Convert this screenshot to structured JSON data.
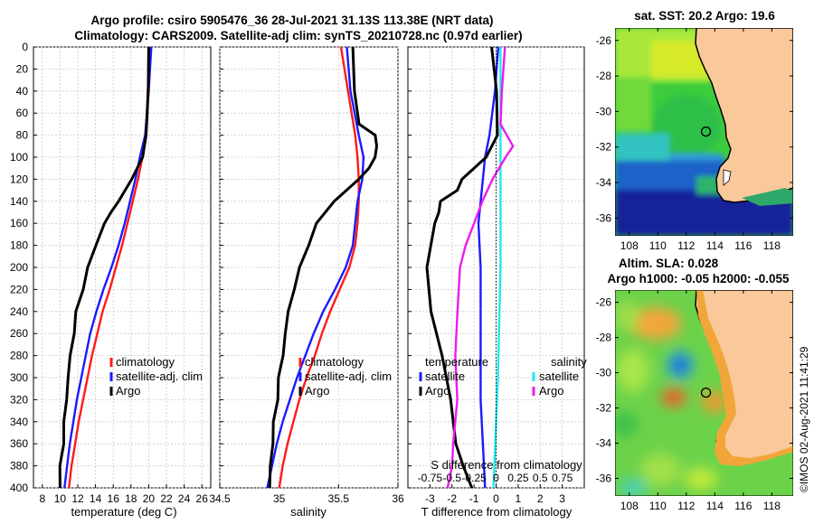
{
  "title_line1": "Argo profile: csiro 5905476_36 28-Jul-2021 31.13S 113.38E (NRT data)",
  "title_line2": "Climatology: CARS2009. Satellite-adj clim: synTS_20210728.nc (0.97d earlier)",
  "colors": {
    "red": "#ff1a1a",
    "blue": "#1a1aff",
    "black": "#000000",
    "cyan": "#1ee8ee",
    "magenta": "#ee1aee",
    "land": "#f9c99b"
  },
  "depth_ticks": [
    "0",
    "20",
    "40",
    "60",
    "80",
    "100",
    "120",
    "140",
    "160",
    "180",
    "200",
    "220",
    "240",
    "260",
    "280",
    "300",
    "320",
    "340",
    "360",
    "380",
    "400"
  ],
  "chart_data": [
    {
      "type": "line",
      "name": "temperature",
      "xlabel": "temperature (deg C)",
      "xlim": [
        7,
        27
      ],
      "ylim": [
        0,
        400
      ],
      "y_reversed": true,
      "xticks": [
        "8",
        "10",
        "12",
        "14",
        "16",
        "18",
        "20",
        "22",
        "24",
        "26"
      ],
      "xtick_values": [
        8,
        10,
        12,
        14,
        16,
        18,
        20,
        22,
        24,
        26
      ],
      "legend": [
        "climatology",
        "satellite-adj. clim",
        "Argo"
      ],
      "series": [
        {
          "name": "climatology",
          "color": "red",
          "depth": [
            0,
            40,
            80,
            100,
            120,
            140,
            160,
            180,
            200,
            220,
            240,
            260,
            280,
            300,
            320,
            340,
            360,
            380,
            400
          ],
          "values": [
            20.2,
            19.9,
            19.7,
            19.3,
            18.8,
            18.2,
            17.6,
            17.0,
            16.3,
            15.6,
            14.8,
            14.2,
            13.6,
            13.1,
            12.6,
            12.1,
            11.7,
            11.3,
            11.0
          ]
        },
        {
          "name": "satellite-adj. clim",
          "color": "blue",
          "depth": [
            0,
            40,
            80,
            100,
            120,
            140,
            160,
            180,
            200,
            220,
            240,
            260,
            280,
            300,
            320,
            340,
            360,
            380,
            400
          ],
          "values": [
            20.3,
            20.0,
            19.6,
            19.0,
            18.5,
            17.9,
            17.3,
            16.6,
            15.8,
            14.9,
            14.1,
            13.4,
            12.9,
            12.4,
            11.9,
            11.5,
            11.1,
            10.8,
            10.5
          ]
        },
        {
          "name": "Argo",
          "color": "black",
          "depth": [
            0,
            40,
            80,
            100,
            120,
            140,
            150,
            160,
            180,
            200,
            220,
            240,
            260,
            280,
            300,
            320,
            340,
            360,
            380,
            400
          ],
          "values": [
            20.0,
            19.9,
            19.8,
            19.2,
            18.2,
            16.5,
            15.8,
            15.0,
            14.0,
            13.2,
            12.5,
            11.9,
            11.5,
            11.2,
            10.9,
            10.7,
            10.5,
            10.3,
            10.1,
            10.0
          ]
        }
      ]
    },
    {
      "type": "line",
      "name": "salinity",
      "xlabel": "salinity",
      "xlim": [
        34.5,
        36.0
      ],
      "ylim": [
        0,
        400
      ],
      "y_reversed": true,
      "xticks": [
        "34.5",
        "35",
        "35.5",
        "36"
      ],
      "xtick_values": [
        34.5,
        35.0,
        35.5,
        36.0
      ],
      "legend": [
        "climatology",
        "satellite-adj. clim",
        "Argo"
      ],
      "series": [
        {
          "name": "climatology",
          "color": "red",
          "depth": [
            0,
            40,
            80,
            100,
            120,
            140,
            160,
            180,
            200,
            220,
            240,
            260,
            280,
            300,
            320,
            340,
            360,
            380,
            400
          ],
          "values": [
            35.52,
            35.58,
            35.64,
            35.66,
            35.67,
            35.67,
            35.66,
            35.64,
            35.59,
            35.51,
            35.43,
            35.36,
            35.3,
            35.23,
            35.17,
            35.12,
            35.07,
            35.03,
            35.0
          ]
        },
        {
          "name": "satellite-adj. clim",
          "color": "blue",
          "depth": [
            0,
            40,
            80,
            100,
            120,
            140,
            160,
            180,
            200,
            220,
            240,
            260,
            280,
            300,
            320,
            340,
            360,
            380,
            400
          ],
          "values": [
            35.57,
            35.6,
            35.67,
            35.71,
            35.7,
            35.66,
            35.64,
            35.62,
            35.56,
            35.47,
            35.37,
            35.29,
            35.22,
            35.15,
            35.09,
            35.03,
            34.98,
            34.94,
            34.9
          ]
        },
        {
          "name": "Argo",
          "color": "black",
          "depth": [
            0,
            40,
            70,
            80,
            90,
            100,
            110,
            120,
            140,
            160,
            180,
            200,
            220,
            240,
            260,
            280,
            300,
            320,
            340,
            360,
            380,
            400
          ],
          "values": [
            35.62,
            35.63,
            35.68,
            35.8,
            35.83,
            35.8,
            35.76,
            35.67,
            35.46,
            35.32,
            35.24,
            35.18,
            35.12,
            35.08,
            35.05,
            35.03,
            35.0,
            34.98,
            34.96,
            34.94,
            34.93,
            34.92
          ]
        }
      ]
    },
    {
      "type": "line",
      "name": "differences",
      "xlabel": "T difference from climatology",
      "top_xlabel": "S difference from climatology",
      "xlim": [
        -4,
        4
      ],
      "ylim": [
        0,
        400
      ],
      "y_reversed": true,
      "xticks": [
        "-3",
        "-2",
        "-1",
        "0",
        "1",
        "2",
        "3"
      ],
      "xtick_values": [
        -3,
        -2,
        -1,
        0,
        1,
        2,
        3
      ],
      "s_ticks": [
        "-0.75",
        "-0.5",
        "-0.25",
        "0",
        "0.25",
        "0.5",
        "0.75"
      ],
      "s_tick_values": [
        -0.75,
        -0.5,
        -0.25,
        0,
        0.25,
        0.5,
        0.75
      ],
      "legend_headers": [
        "temperature",
        "salinity"
      ],
      "legend": [
        "satellite",
        "Argo",
        "satellite",
        "Argo"
      ],
      "series": [
        {
          "name": "T satellite",
          "color": "blue",
          "depth": [
            0,
            40,
            80,
            100,
            120,
            160,
            200,
            240,
            280,
            320,
            360,
            400
          ],
          "values": [
            0.1,
            -0.05,
            -0.3,
            -0.5,
            -0.6,
            -0.8,
            -0.7,
            -0.7,
            -0.7,
            -0.7,
            -0.6,
            -0.5
          ]
        },
        {
          "name": "T Argo",
          "color": "black",
          "depth": [
            0,
            40,
            80,
            100,
            120,
            130,
            140,
            150,
            160,
            200,
            240,
            280,
            320,
            360,
            380,
            400
          ],
          "values": [
            -0.2,
            0.0,
            0.1,
            -0.5,
            -1.5,
            -1.8,
            -2.5,
            -2.6,
            -2.8,
            -3.1,
            -3.0,
            -2.4,
            -2.1,
            -1.8,
            -1.5,
            -1.1
          ]
        },
        {
          "name": "S satellite",
          "color": "cyan",
          "depth": [
            0,
            100,
            200,
            300,
            400
          ],
          "values": [
            0.05,
            0.05,
            0.05,
            0.02,
            -0.03
          ]
        },
        {
          "name": "S Argo",
          "color": "magenta",
          "depth": [
            0,
            40,
            70,
            90,
            100,
            120,
            140,
            160,
            180,
            200,
            240,
            280,
            320,
            360,
            380,
            400
          ],
          "values": [
            0.1,
            0.06,
            0.06,
            0.18,
            0.12,
            -0.05,
            -0.15,
            -0.25,
            -0.35,
            -0.4,
            -0.45,
            -0.45,
            -0.45,
            -0.48,
            -0.5,
            -0.55
          ]
        }
      ]
    },
    {
      "type": "heatmap",
      "name": "sst_map",
      "title": "sat. SST: 20.2 Argo: 19.6",
      "xticks": [
        "108",
        "110",
        "112",
        "114",
        "116",
        "118"
      ],
      "yticks": [
        "-26",
        "-28",
        "-30",
        "-32",
        "-34",
        "-36"
      ],
      "xlim": [
        107,
        119.5
      ],
      "ylim": [
        -37,
        -25.3
      ],
      "argo_lon": 113.38,
      "argo_lat": -31.13
    },
    {
      "type": "heatmap",
      "name": "sla_map",
      "title": "Altim. SLA: 0.028",
      "subtitle": "Argo h1000: -0.05 h2000: -0.055",
      "xticks": [
        "108",
        "110",
        "112",
        "114",
        "116",
        "118"
      ],
      "yticks": [
        "-26",
        "-28",
        "-30",
        "-32",
        "-34",
        "-36"
      ],
      "xlim": [
        107,
        119.5
      ],
      "ylim": [
        -37,
        -25.3
      ],
      "argo_lon": 113.38,
      "argo_lat": -31.13
    }
  ],
  "timestamp": "©IMOS 02-Aug-2021 11:41:29"
}
